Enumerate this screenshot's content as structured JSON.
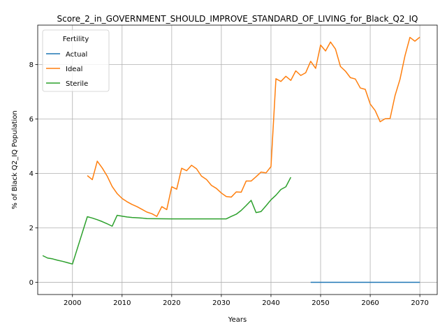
{
  "chart_data": {
    "type": "line",
    "title": "Score_2_in_GOVERNMENT_SHOULD_IMPROVE_STANDARD_OF_LIVING_for_Black_Q2_IQ",
    "xlabel": "Years",
    "ylabel": "% of Black Q2_IQ Population",
    "xlim": [
      1993,
      2073.5
    ],
    "ylim": [
      -0.45,
      9.45
    ],
    "xticks": [
      2000,
      2010,
      2020,
      2030,
      2040,
      2050,
      2060,
      2070
    ],
    "yticks": [
      0,
      2,
      4,
      6,
      8
    ],
    "grid": true,
    "legend": {
      "title": "Fertility",
      "placement": "top-left"
    },
    "series": [
      {
        "name": "Actual",
        "color": "#1f77b4",
        "points": [
          [
            2048,
            0
          ],
          [
            2049,
            0
          ],
          [
            2050,
            0
          ],
          [
            2055,
            0
          ],
          [
            2060,
            0
          ],
          [
            2065,
            0
          ],
          [
            2070,
            0
          ]
        ]
      },
      {
        "name": "Ideal",
        "color": "#ff7f0e",
        "points": [
          [
            2003,
            3.92
          ],
          [
            2004,
            3.77
          ],
          [
            2005,
            4.45
          ],
          [
            2006,
            4.2
          ],
          [
            2007,
            3.9
          ],
          [
            2008,
            3.52
          ],
          [
            2009,
            3.26
          ],
          [
            2010,
            3.08
          ],
          [
            2011,
            2.96
          ],
          [
            2012,
            2.86
          ],
          [
            2013,
            2.78
          ],
          [
            2014,
            2.68
          ],
          [
            2015,
            2.58
          ],
          [
            2016,
            2.52
          ],
          [
            2017,
            2.42
          ],
          [
            2018,
            2.78
          ],
          [
            2019,
            2.67
          ],
          [
            2020,
            3.51
          ],
          [
            2021,
            3.42
          ],
          [
            2022,
            4.19
          ],
          [
            2023,
            4.1
          ],
          [
            2024,
            4.3
          ],
          [
            2025,
            4.17
          ],
          [
            2026,
            3.9
          ],
          [
            2027,
            3.78
          ],
          [
            2028,
            3.56
          ],
          [
            2029,
            3.45
          ],
          [
            2030,
            3.28
          ],
          [
            2031,
            3.15
          ],
          [
            2032,
            3.13
          ],
          [
            2033,
            3.32
          ],
          [
            2034,
            3.31
          ],
          [
            2035,
            3.72
          ],
          [
            2036,
            3.72
          ],
          [
            2037,
            3.88
          ],
          [
            2038,
            4.05
          ],
          [
            2039,
            4.02
          ],
          [
            2040,
            4.25
          ],
          [
            2041,
            7.48
          ],
          [
            2042,
            7.38
          ],
          [
            2043,
            7.57
          ],
          [
            2044,
            7.42
          ],
          [
            2045,
            7.77
          ],
          [
            2046,
            7.6
          ],
          [
            2047,
            7.7
          ],
          [
            2048,
            8.12
          ],
          [
            2049,
            7.86
          ],
          [
            2050,
            8.72
          ],
          [
            2051,
            8.5
          ],
          [
            2052,
            8.83
          ],
          [
            2053,
            8.57
          ],
          [
            2054,
            7.93
          ],
          [
            2055,
            7.76
          ],
          [
            2056,
            7.52
          ],
          [
            2057,
            7.47
          ],
          [
            2058,
            7.14
          ],
          [
            2059,
            7.09
          ],
          [
            2060,
            6.55
          ],
          [
            2061,
            6.31
          ],
          [
            2062,
            5.9
          ],
          [
            2063,
            6.01
          ],
          [
            2064,
            6.02
          ],
          [
            2065,
            6.86
          ],
          [
            2066,
            7.46
          ],
          [
            2067,
            8.32
          ],
          [
            2068,
            9.0
          ],
          [
            2069,
            8.86
          ],
          [
            2070,
            9.01
          ]
        ]
      },
      {
        "name": "Sterile",
        "color": "#2ca02c",
        "points": [
          [
            1994,
            0.98
          ],
          [
            1995,
            0.89
          ],
          [
            1996,
            0.86
          ],
          [
            1997,
            0.81
          ],
          [
            1998,
            0.77
          ],
          [
            1999,
            0.72
          ],
          [
            2000,
            0.67
          ],
          [
            2003,
            2.41
          ],
          [
            2004,
            2.36
          ],
          [
            2005,
            2.3
          ],
          [
            2006,
            2.23
          ],
          [
            2007,
            2.15
          ],
          [
            2008,
            2.06
          ],
          [
            2009,
            2.46
          ],
          [
            2010,
            2.43
          ],
          [
            2011,
            2.4
          ],
          [
            2012,
            2.38
          ],
          [
            2013,
            2.37
          ],
          [
            2014,
            2.36
          ],
          [
            2015,
            2.34
          ],
          [
            2020,
            2.33
          ],
          [
            2025,
            2.33
          ],
          [
            2030,
            2.33
          ],
          [
            2031,
            2.33
          ],
          [
            2032,
            2.42
          ],
          [
            2033,
            2.5
          ],
          [
            2034,
            2.64
          ],
          [
            2035,
            2.82
          ],
          [
            2036,
            3.01
          ],
          [
            2037,
            2.56
          ],
          [
            2038,
            2.6
          ],
          [
            2039,
            2.81
          ],
          [
            2040,
            3.03
          ],
          [
            2041,
            3.2
          ],
          [
            2042,
            3.41
          ],
          [
            2043,
            3.51
          ],
          [
            2044,
            3.86
          ]
        ]
      }
    ]
  }
}
